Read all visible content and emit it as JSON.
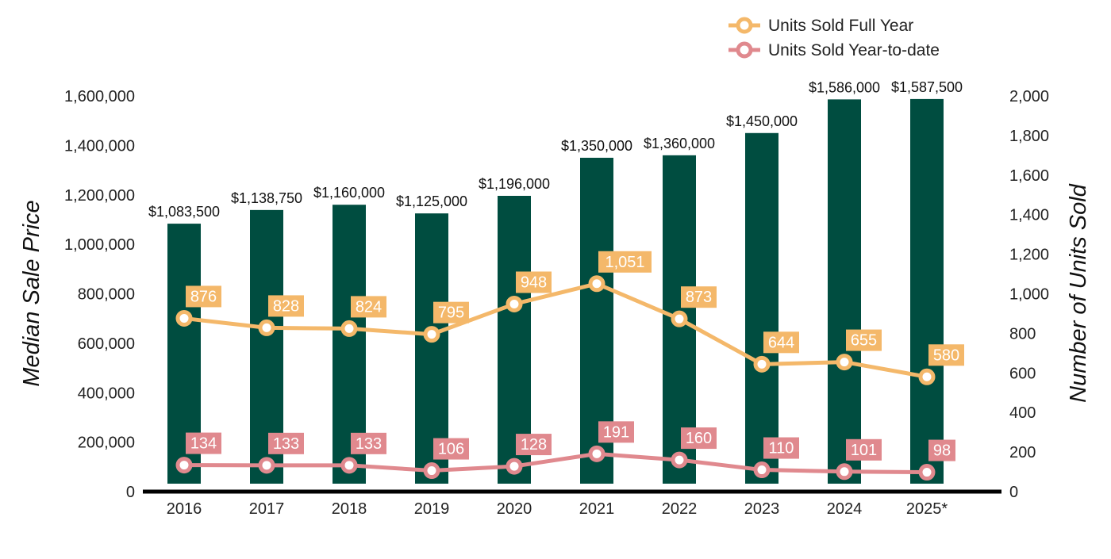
{
  "chart_data": {
    "type": "bar",
    "categories": [
      "2016",
      "2017",
      "2018",
      "2019",
      "2020",
      "2021",
      "2022",
      "2023",
      "2024",
      "2025*"
    ],
    "bars": {
      "name": "Median Sale Price",
      "values": [
        1083500,
        1138750,
        1160000,
        1125000,
        1196000,
        1350000,
        1360000,
        1450000,
        1586000,
        1587500
      ],
      "labels": [
        "$1,083,500",
        "$1,138,750",
        "$1,160,000",
        "$1,125,000",
        "$1,196,000",
        "$1,350,000",
        "$1,360,000",
        "$1,450,000",
        "$1,586,000",
        "$1,587,500"
      ],
      "color": "#004d40"
    },
    "series": [
      {
        "name": "Units Sold Full Year",
        "type": "line",
        "axis": "right",
        "values": [
          876,
          828,
          824,
          795,
          948,
          1051,
          873,
          644,
          655,
          580
        ],
        "labels": [
          "876",
          "828",
          "824",
          "795",
          "948",
          "1,051",
          "873",
          "644",
          "655",
          "580"
        ],
        "color": "#f4b86a"
      },
      {
        "name": "Units Sold Year-to-date",
        "type": "line",
        "axis": "right",
        "values": [
          134,
          133,
          133,
          106,
          128,
          191,
          160,
          110,
          101,
          98
        ],
        "labels": [
          "134",
          "133",
          "133",
          "106",
          "128",
          "191",
          "160",
          "110",
          "101",
          "98"
        ],
        "color": "#e0898e"
      }
    ],
    "y_left": {
      "label": "Median Sale Price",
      "range": [
        0,
        1600000
      ],
      "ticks": [
        "0",
        "200,000",
        "400,000",
        "600,000",
        "800,000",
        "1,000,000",
        "1,200,000",
        "1,400,000",
        "1,600,000"
      ]
    },
    "y_right": {
      "label": "Number of Units Sold",
      "range": [
        0,
        2000
      ],
      "ticks": [
        "0",
        "200",
        "400",
        "600",
        "800",
        "1,000",
        "1,200",
        "1,400",
        "1,600",
        "1,800",
        "2,000"
      ]
    },
    "legend": {
      "position": "top-right",
      "entries": [
        "Units Sold Full Year",
        "Units Sold Year-to-date"
      ]
    },
    "grid": false
  }
}
